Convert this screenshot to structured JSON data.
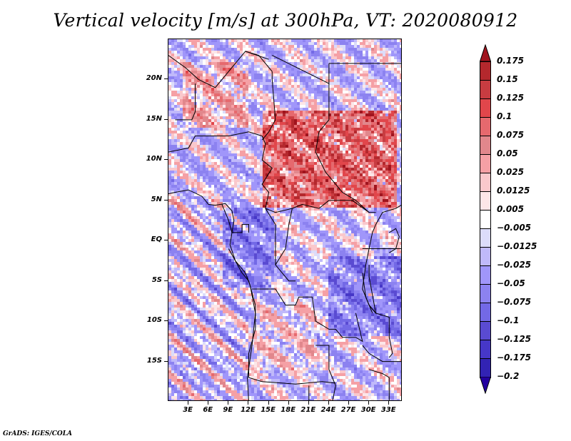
{
  "title": "Vertical velocity [m/s] at 300hPa, VT: 2020080912",
  "footer": "GrADS: IGES/COLA",
  "map": {
    "lon_range": [
      0,
      35
    ],
    "lat_range": [
      -20,
      25
    ],
    "lat_ticks": [
      {
        "value": 20,
        "label": "20N"
      },
      {
        "value": 15,
        "label": "15N"
      },
      {
        "value": 10,
        "label": "10N"
      },
      {
        "value": 5,
        "label": "5N"
      },
      {
        "value": 0,
        "label": "EQ"
      },
      {
        "value": -5,
        "label": "5S"
      },
      {
        "value": -10,
        "label": "10S"
      },
      {
        "value": -15,
        "label": "15S"
      }
    ],
    "lon_ticks": [
      {
        "value": 3,
        "label": "3E"
      },
      {
        "value": 6,
        "label": "6E"
      },
      {
        "value": 9,
        "label": "9E"
      },
      {
        "value": 12,
        "label": "12E"
      },
      {
        "value": 15,
        "label": "15E"
      },
      {
        "value": 18,
        "label": "18E"
      },
      {
        "value": 21,
        "label": "21E"
      },
      {
        "value": 24,
        "label": "24E"
      },
      {
        "value": 27,
        "label": "27E"
      },
      {
        "value": 30,
        "label": "30E"
      },
      {
        "value": 33,
        "label": "33E"
      }
    ],
    "field_description": "Positive (red, ascent) dominant over Chad/Sudan/Central African Republic/northern DR Congo (5N-15N, 15E-33E); negative (blue, descent) dominant over Gulf of Guinea, Atlantic, Gabon/Congo and south-east",
    "regions": [
      {
        "name": "sahel-ascent",
        "lon": [
          14,
          34
        ],
        "lat": [
          4,
          16
        ],
        "sign": 1,
        "strength": 0.12
      },
      {
        "name": "niger-mixed",
        "lon": [
          2,
          12
        ],
        "lat": [
          14,
          22
        ],
        "sign": 1,
        "strength": 0.06
      },
      {
        "name": "congo-descent",
        "lon": [
          8,
          16
        ],
        "lat": [
          -6,
          4
        ],
        "sign": -1,
        "strength": 0.06
      },
      {
        "name": "atlantic-stripes",
        "lon": [
          0,
          12
        ],
        "lat": [
          -20,
          5
        ],
        "sign": 0,
        "strength": 0.04
      },
      {
        "name": "angola-ascent",
        "lon": [
          13,
          22
        ],
        "lat": [
          -16,
          -8
        ],
        "sign": 1,
        "strength": 0.04
      },
      {
        "name": "east-descent",
        "lon": [
          24,
          35
        ],
        "lat": [
          -12,
          -2
        ],
        "sign": -1,
        "strength": 0.06
      }
    ]
  },
  "colorbar": {
    "levels": [
      "0.175",
      "0.15",
      "0.125",
      "0.1",
      "0.075",
      "0.05",
      "0.025",
      "0.0125",
      "0.005",
      "-0.005",
      "-0.0125",
      "-0.025",
      "-0.05",
      "-0.075",
      "-0.1",
      "-0.125",
      "-0.175",
      "-0.2"
    ],
    "colors": [
      "#b41e23",
      "#c83237",
      "#e1464b",
      "#e6696e",
      "#e1878c",
      "#f5a0a5",
      "#fac8cc",
      "#fde6e8",
      "#ffffff",
      "#dcdcfa",
      "#c0b9fa",
      "#a096fa",
      "#8c82f0",
      "#7369e6",
      "#5a4bd2",
      "#4637c8",
      "#3223b4",
      "#2812a0"
    ],
    "top_arrow_color": "#a0141e",
    "bottom_arrow_color": "#2300a0"
  }
}
